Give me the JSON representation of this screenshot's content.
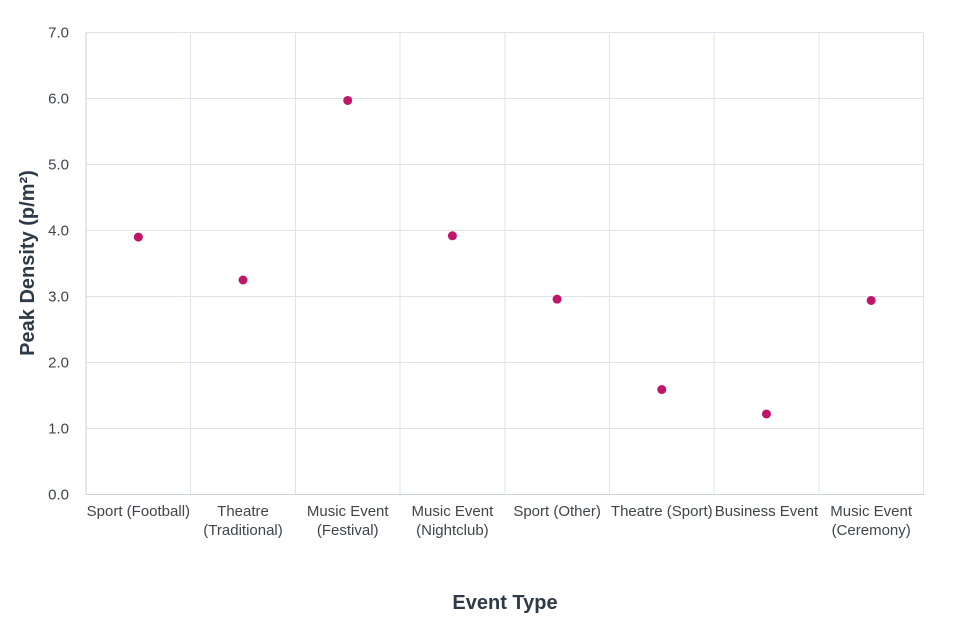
{
  "chart_data": {
    "type": "scatter",
    "title": "",
    "xlabel": "Event Type",
    "ylabel": "Peak Density (p/m²)",
    "categories": [
      "Sport (Football)",
      "Theatre (Traditional)",
      "Music Event (Festival)",
      "Music Event (Nightclub)",
      "Sport (Other)",
      "Theatre (Sport)",
      "Business Event",
      "Music Event (Ceremony)"
    ],
    "x_tick_label_lines": [
      [
        "Sport (Football)"
      ],
      [
        "Theatre",
        "(Traditional)"
      ],
      [
        "Music Event",
        "(Festival)"
      ],
      [
        "Music Event",
        "(Nightclub)"
      ],
      [
        "Sport (Other)"
      ],
      [
        "Theatre (Sport)"
      ],
      [
        "Business Event"
      ],
      [
        "Music Event",
        "(Ceremony)"
      ]
    ],
    "values": [
      3.9,
      3.25,
      5.97,
      3.92,
      2.96,
      1.59,
      1.22,
      2.94
    ],
    "ylim": [
      0,
      7
    ],
    "ytick_step": 1.0,
    "ytick_labels": [
      "0.0",
      "1.0",
      "2.0",
      "3.0",
      "4.0",
      "5.0",
      "6.0",
      "7.0"
    ],
    "grid": true,
    "legend": "none",
    "marker": {
      "shape": "circle",
      "radius": 4.5
    },
    "colors": {
      "point": "#c01568",
      "gridline": "#dde3e9",
      "axis_line": "#c9d3da",
      "tick_text": "#3f454b",
      "axis_title_text": "#2e3a47",
      "background": "#ffffff"
    }
  }
}
